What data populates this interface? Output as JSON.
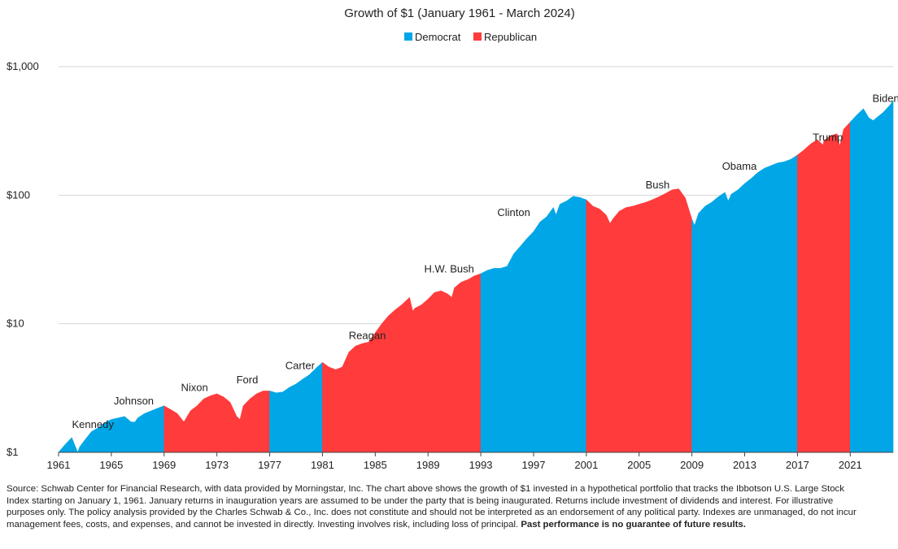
{
  "chart_data": {
    "type": "area",
    "title": "Growth of $1 (January 1961 - March 2024)",
    "legend": [
      {
        "name": "Democrat",
        "color": "#00a6e6"
      },
      {
        "name": "Republican",
        "color": "#ff3b3b"
      }
    ],
    "legend_position": "top-center",
    "y_scale": "log",
    "ylim": [
      1,
      1000
    ],
    "y_ticks": [
      {
        "value": 1,
        "label": "$1"
      },
      {
        "value": 10,
        "label": "$10"
      },
      {
        "value": 100,
        "label": "$100"
      },
      {
        "value": 1000,
        "label": "$1,000"
      }
    ],
    "xlim": [
      1961,
      2024.25
    ],
    "x_ticks": [
      "1961",
      "1965",
      "1969",
      "1973",
      "1977",
      "1981",
      "1985",
      "1989",
      "1993",
      "1997",
      "2001",
      "2005",
      "2009",
      "2013",
      "2017",
      "2021"
    ],
    "grid": true,
    "x": [
      1961.0,
      1961.5,
      1962.0,
      1962.45,
      1962.6,
      1963.0,
      1963.5,
      1964.0,
      1964.5,
      1965.0,
      1965.5,
      1966.0,
      1966.5,
      1966.8,
      1967.0,
      1967.5,
      1968.0,
      1968.5,
      1969.0,
      1969.5,
      1970.0,
      1970.5,
      1971.0,
      1971.5,
      1972.0,
      1972.5,
      1973.0,
      1973.5,
      1974.0,
      1974.5,
      1974.75,
      1975.0,
      1975.5,
      1976.0,
      1976.5,
      1977.0,
      1977.5,
      1978.0,
      1978.5,
      1979.0,
      1979.5,
      1980.0,
      1980.5,
      1981.0,
      1981.5,
      1982.0,
      1982.5,
      1983.0,
      1983.5,
      1984.0,
      1984.5,
      1985.0,
      1985.5,
      1986.0,
      1986.5,
      1987.0,
      1987.6,
      1987.85,
      1988.0,
      1988.5,
      1989.0,
      1989.5,
      1990.0,
      1990.5,
      1990.8,
      1991.0,
      1991.5,
      1992.0,
      1992.5,
      1993.0,
      1993.5,
      1994.0,
      1994.5,
      1995.0,
      1995.5,
      1996.0,
      1996.5,
      1997.0,
      1997.5,
      1998.0,
      1998.5,
      1998.7,
      1999.0,
      1999.5,
      2000.0,
      2000.5,
      2001.0,
      2001.5,
      2002.0,
      2002.5,
      2002.8,
      2003.0,
      2003.5,
      2004.0,
      2004.5,
      2005.0,
      2005.5,
      2006.0,
      2006.5,
      2007.0,
      2007.5,
      2008.0,
      2008.5,
      2008.9,
      2009.0,
      2009.2,
      2009.5,
      2010.0,
      2010.5,
      2011.0,
      2011.5,
      2011.75,
      2012.0,
      2012.5,
      2013.0,
      2013.5,
      2014.0,
      2014.5,
      2015.0,
      2015.5,
      2016.0,
      2016.5,
      2017.0,
      2017.5,
      2018.0,
      2018.5,
      2018.95,
      2019.0,
      2019.5,
      2020.0,
      2020.2,
      2020.5,
      2021.0,
      2021.5,
      2022.0,
      2022.4,
      2022.75,
      2023.0,
      2023.5,
      2024.0,
      2024.25
    ],
    "y": [
      1.0,
      1.15,
      1.3,
      1.0,
      1.1,
      1.25,
      1.45,
      1.55,
      1.7,
      1.8,
      1.85,
      1.9,
      1.72,
      1.72,
      1.85,
      2.0,
      2.1,
      2.2,
      2.3,
      2.15,
      2.0,
      1.72,
      2.1,
      2.3,
      2.6,
      2.75,
      2.85,
      2.7,
      2.45,
      1.9,
      1.8,
      2.3,
      2.6,
      2.85,
      3.0,
      3.0,
      2.9,
      2.95,
      3.2,
      3.4,
      3.7,
      4.0,
      4.5,
      5.0,
      4.6,
      4.4,
      4.6,
      6.0,
      6.7,
      7.0,
      7.2,
      8.5,
      10.0,
      11.5,
      12.8,
      14.0,
      16.0,
      12.5,
      13.2,
      14.0,
      15.5,
      17.5,
      18.0,
      17.0,
      16.0,
      19.0,
      21.0,
      22.0,
      23.5,
      24.5,
      26.0,
      27.0,
      27.0,
      28.0,
      35.0,
      40.0,
      46.0,
      52.0,
      62.0,
      68.0,
      80.0,
      70.0,
      85.0,
      90.0,
      98.0,
      96.0,
      92.0,
      82.0,
      78.0,
      70.0,
      60.0,
      65.0,
      75.0,
      80.0,
      82.0,
      85.0,
      88.0,
      92.0,
      97.0,
      103.0,
      110.0,
      112.0,
      95.0,
      70.0,
      65.0,
      58.0,
      72.0,
      82.0,
      88.0,
      97.0,
      105.0,
      90.0,
      102.0,
      110.0,
      123.0,
      135.0,
      150.0,
      162.0,
      170.0,
      178.0,
      182.0,
      190.0,
      205.0,
      225.0,
      250.0,
      270.0,
      245.0,
      265.0,
      290.0,
      300.0,
      240.0,
      325.0,
      370.0,
      420.0,
      470.0,
      400.0,
      380.0,
      400.0,
      440.0,
      500.0,
      540.0
    ],
    "terms": [
      {
        "president": "Kennedy",
        "party": "Democrat",
        "start": 1961.0,
        "end": 1963.9
      },
      {
        "president": "Johnson",
        "party": "Democrat",
        "start": 1963.9,
        "end": 1969.0
      },
      {
        "president": "Nixon",
        "party": "Republican",
        "start": 1969.0,
        "end": 1974.6
      },
      {
        "president": "Ford",
        "party": "Republican",
        "start": 1974.6,
        "end": 1977.0
      },
      {
        "president": "Carter",
        "party": "Democrat",
        "start": 1977.0,
        "end": 1981.0
      },
      {
        "president": "Reagan",
        "party": "Republican",
        "start": 1981.0,
        "end": 1989.0
      },
      {
        "president": "H.W. Bush",
        "party": "Republican",
        "start": 1989.0,
        "end": 1993.0
      },
      {
        "president": "Clinton",
        "party": "Democrat",
        "start": 1993.0,
        "end": 2001.0
      },
      {
        "president": "Bush",
        "party": "Republican",
        "start": 2001.0,
        "end": 2009.0
      },
      {
        "president": "Obama",
        "party": "Democrat",
        "start": 2009.0,
        "end": 2017.0
      },
      {
        "president": "Trump",
        "party": "Republican",
        "start": 2017.0,
        "end": 2021.0
      },
      {
        "president": "Biden",
        "party": "Democrat",
        "start": 2021.0,
        "end": 2024.25
      }
    ],
    "president_labels": [
      {
        "text": "Kennedy",
        "year": 1963.6,
        "value": 1.55
      },
      {
        "text": "Johnson",
        "year": 1966.7,
        "value": 2.35
      },
      {
        "text": "Nixon",
        "year": 1971.3,
        "value": 3.0
      },
      {
        "text": "Ford",
        "year": 1975.3,
        "value": 3.45
      },
      {
        "text": "Carter",
        "year": 1979.3,
        "value": 4.45
      },
      {
        "text": "Reagan",
        "year": 1984.4,
        "value": 7.6
      },
      {
        "text": "H.W. Bush",
        "year": 1990.6,
        "value": 25.0
      },
      {
        "text": "Clinton",
        "year": 1995.5,
        "value": 69.0
      },
      {
        "text": "Bush",
        "year": 2006.4,
        "value": 113.0
      },
      {
        "text": "Obama",
        "year": 2012.6,
        "value": 158.0
      },
      {
        "text": "Trump",
        "year": 2019.3,
        "value": 265.0
      },
      {
        "text": "Biden",
        "year": 2023.7,
        "value": 530.0
      }
    ]
  },
  "footnote": {
    "main": "Source: Schwab Center for Financial Research, with data provided by Morningstar, Inc. The chart above shows the growth of $1 invested in a hypothetical portfolio that tracks the Ibbotson U.S. Large Stock Index starting on January 1, 1961. January returns in inauguration years are assumed to be under the party that is being inaugurated. Returns include investment of dividends and interest. For illustrative purposes only. The policy analysis provided by the Charles Schwab & Co., Inc. does not constitute and should not be interpreted as an endorsement of any political party. Indexes are unmanaged, do not incur management fees, costs, and expenses, and cannot be invested in directly. Investing involves risk, including loss of principal.",
    "bold": "Past performance is no guarantee of future results."
  }
}
